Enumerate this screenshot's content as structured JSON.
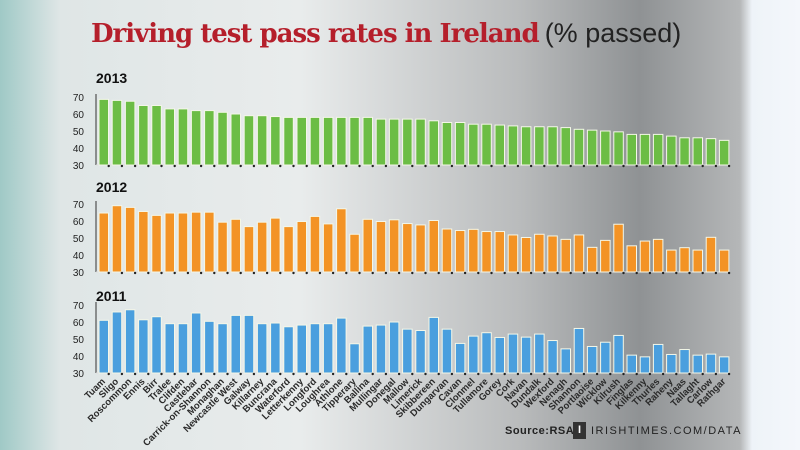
{
  "title": {
    "main": "Driving test pass rates in Ireland",
    "sub": "(% passed)"
  },
  "footer": {
    "source": "Source:RSA",
    "logo_letter": "I",
    "brand": "IRISHTIMES.COM/DATA"
  },
  "chart_data": {
    "type": "bar",
    "title": "Driving test pass rates in Ireland (% passed)",
    "ylim": [
      30,
      70
    ],
    "yticks": [
      30,
      40,
      50,
      60,
      70
    ],
    "grid": false,
    "categories": [
      "Tuam",
      "Sligo",
      "Roscommon",
      "Ennis",
      "Birr",
      "Tralee",
      "Clifden",
      "Castlebar",
      "Carrick-on-Shannon",
      "Monaghan",
      "Newcastle West",
      "Galway",
      "Killarney",
      "Buncrana",
      "Waterford",
      "Letterkenny",
      "Longford",
      "Loughrea",
      "Athlone",
      "Tipperary",
      "Ballina",
      "Mullingar",
      "Donegal",
      "Mallow",
      "Limerick",
      "Skibbereen",
      "Dungarvan",
      "Cavan",
      "Clonmel",
      "Tullamore",
      "Gorey",
      "Cork",
      "Navan",
      "Dundalk",
      "Wexford",
      "Nenagh",
      "Shannon",
      "Portlaoise",
      "Wicklow",
      "Kilrush",
      "Finglas",
      "Kilkenny",
      "Thurles",
      "Raheny",
      "Naas",
      "Tallaght",
      "Carlow",
      "Rathgar"
    ],
    "series": [
      {
        "name": "2013",
        "color": "#6cbd45",
        "values": [
          68.6,
          68,
          67.5,
          65,
          65,
          63,
          63,
          62,
          62,
          61,
          60,
          59,
          59,
          58.5,
          58,
          58,
          58,
          58,
          58,
          58,
          58,
          57,
          57,
          57,
          57,
          56,
          55,
          55,
          54,
          54,
          53.5,
          53,
          52.5,
          52.5,
          52.5,
          52,
          51,
          50.5,
          50,
          49.5,
          48,
          48,
          48,
          47,
          46,
          46,
          45.5,
          44.5
        ]
      },
      {
        "name": "2012",
        "color": "#f39325",
        "values": [
          64.7,
          69,
          68,
          65.6,
          63.3,
          64.7,
          64.7,
          65.2,
          65.2,
          59.3,
          61,
          56.7,
          59.3,
          61.7,
          56.7,
          59.7,
          62.7,
          58.3,
          67.2,
          52.2,
          61,
          59.7,
          60.7,
          58.5,
          57.7,
          60.3,
          55.3,
          54.4,
          55.1,
          53.8,
          53.8,
          51.8,
          50.3,
          52.2,
          51.2,
          49.2,
          51.8,
          44.5,
          48.6,
          58.1,
          45.4,
          48.2,
          49.2,
          42.9,
          44.3,
          42.9,
          50.4,
          42.9
        ]
      },
      {
        "name": "2011",
        "color": "#4a9fde",
        "values": [
          61,
          65.9,
          67.2,
          61.3,
          63.1,
          59,
          59,
          65.3,
          60.4,
          59,
          63.9,
          63.9,
          59,
          59.4,
          57.2,
          58.2,
          59,
          59,
          62.3,
          47.2,
          57.6,
          58.2,
          60,
          55.8,
          55,
          62.7,
          55.8,
          47.4,
          51.7,
          53.7,
          50.9,
          52.9,
          51.1,
          52.9,
          49.1,
          44.2,
          56.2,
          45.6,
          48.1,
          52.1,
          40.5,
          39.5,
          46.8,
          40.9,
          43.8,
          40.5,
          41.1,
          39.5
        ]
      }
    ]
  }
}
